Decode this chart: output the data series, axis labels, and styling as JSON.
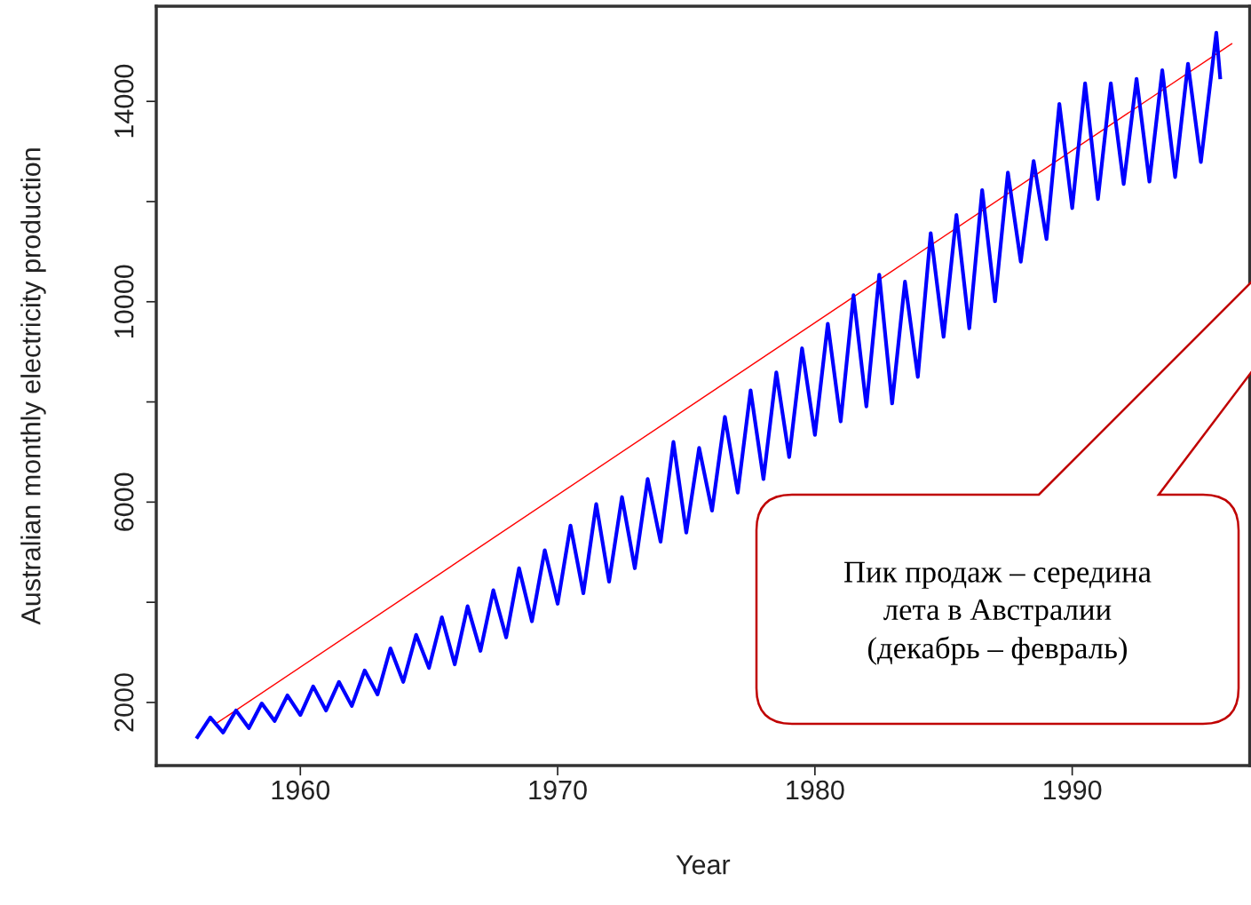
{
  "chart_data": {
    "type": "line",
    "xlabel": "Year",
    "ylabel": "Australian monthly electricity production",
    "xlim": [
      1954.4,
      1996.9
    ],
    "ylim": [
      740,
      15900
    ],
    "xticks": [
      1960,
      1970,
      1980,
      1990
    ],
    "yticks": [
      2000,
      {
        "value": 4000,
        "label": null
      },
      6000,
      {
        "value": 8000,
        "label": null
      },
      10000,
      {
        "value": 12000,
        "label": null
      },
      14000
    ],
    "grid": false,
    "marker": "none",
    "line_style": "solid",
    "series": [
      {
        "color": "#0000ff",
        "x": [
          1956.0,
          1956.5,
          1957.0,
          1957.5,
          1958.0,
          1958.5,
          1959.0,
          1959.5,
          1960.0,
          1960.5,
          1961.0,
          1961.5,
          1962.0,
          1962.5,
          1963.0,
          1963.5,
          1964.0,
          1964.5,
          1965.0,
          1965.5,
          1966.0,
          1966.5,
          1967.0,
          1967.5,
          1968.0,
          1968.5,
          1969.0,
          1969.5,
          1970.0,
          1970.5,
          1971.0,
          1971.5,
          1972.0,
          1972.5,
          1973.0,
          1973.5,
          1974.0,
          1974.5,
          1975.0,
          1975.5,
          1976.0,
          1976.5,
          1977.0,
          1977.5,
          1978.0,
          1978.5,
          1979.0,
          1979.5,
          1980.0,
          1980.5,
          1981.0,
          1981.5,
          1982.0,
          1982.5,
          1983.0,
          1983.5,
          1984.0,
          1984.5,
          1985.0,
          1985.5,
          1986.0,
          1986.5,
          1987.0,
          1987.5,
          1988.0,
          1988.5,
          1989.0,
          1989.5,
          1990.0,
          1990.5,
          1991.0,
          1991.5,
          1992.0,
          1992.5,
          1993.0,
          1993.5,
          1994.0,
          1994.5,
          1995.0,
          1995.6,
          1995.75
        ],
        "values": [
          1310,
          1700,
          1400,
          1840,
          1490,
          1980,
          1630,
          2140,
          1750,
          2320,
          1840,
          2410,
          1930,
          2640,
          2160,
          3080,
          2410,
          3350,
          2690,
          3700,
          2760,
          3920,
          3030,
          4240,
          3300,
          4680,
          3620,
          5040,
          3970,
          5530,
          4180,
          5960,
          4410,
          6100,
          4680,
          6460,
          5210,
          7200,
          5390,
          7080,
          5830,
          7700,
          6190,
          8230,
          6460,
          8590,
          6900,
          9070,
          7340,
          9560,
          7610,
          10130,
          7910,
          10540,
          7970,
          10400,
          8500,
          11370,
          9300,
          11730,
          9470,
          12230,
          10010,
          12580,
          10800,
          12810,
          11250,
          13950,
          11870,
          14360,
          12050,
          14360,
          12350,
          14450,
          12400,
          14620,
          12490,
          14750,
          12790,
          15370,
          14480
        ]
      },
      {
        "color": "#ff0000",
        "x": [
          1956.7,
          1996.2
        ],
        "values": [
          1570,
          15150
        ]
      }
    ],
    "annotations": [
      "Пик продаж – середина\nлета в Австралии\n(декабрь – февраль)"
    ]
  }
}
